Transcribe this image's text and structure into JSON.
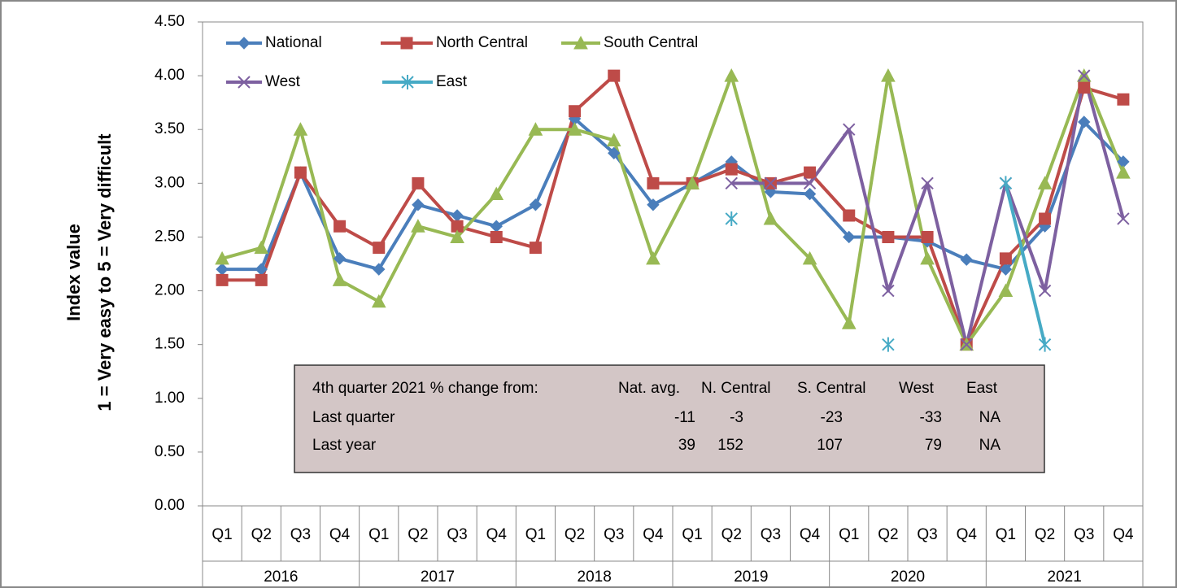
{
  "chart_data": {
    "type": "line",
    "ylabel": [
      "Index value",
      "1 = Very easy to 5 = Very difficult"
    ],
    "categories": [
      "Q1",
      "Q2",
      "Q3",
      "Q4",
      "Q1",
      "Q2",
      "Q3",
      "Q4",
      "Q1",
      "Q2",
      "Q3",
      "Q4",
      "Q1",
      "Q2",
      "Q3",
      "Q4",
      "Q1",
      "Q2",
      "Q3",
      "Q4",
      "Q1",
      "Q2",
      "Q3",
      "Q4"
    ],
    "groups": [
      "2016",
      "2017",
      "2018",
      "2019",
      "2020",
      "2021"
    ],
    "ylim": [
      0,
      4.5
    ],
    "yticks": [
      {
        "value": 0,
        "label": "0.00"
      },
      {
        "value": 0.5,
        "label": "0.50"
      },
      {
        "value": 1,
        "label": "1.00"
      },
      {
        "value": 1.5,
        "label": "1.50"
      },
      {
        "value": 2,
        "label": "2.00"
      },
      {
        "value": 2.5,
        "label": "2.50"
      },
      {
        "value": 3,
        "label": "3.00"
      },
      {
        "value": 3.5,
        "label": "3.50"
      },
      {
        "value": 4,
        "label": "4.00"
      },
      {
        "value": 4.5,
        "label": "4.50"
      }
    ],
    "series": [
      {
        "name": "National",
        "color": "#4a7ebb",
        "marker": "diamond",
        "values": [
          2.2,
          2.2,
          3.1,
          2.3,
          2.2,
          2.8,
          2.7,
          2.6,
          2.8,
          3.6,
          3.28,
          2.8,
          3.0,
          3.2,
          2.92,
          2.9,
          2.5,
          2.5,
          2.46,
          2.29,
          2.2,
          2.6,
          3.57,
          3.2
        ]
      },
      {
        "name": "North Central",
        "color": "#be4b48",
        "marker": "square",
        "values": [
          2.1,
          2.1,
          3.1,
          2.6,
          2.4,
          3.0,
          2.6,
          2.5,
          2.4,
          3.67,
          4.0,
          3.0,
          3.0,
          3.13,
          3.0,
          3.1,
          2.7,
          2.5,
          2.5,
          1.5,
          2.3,
          2.67,
          3.89,
          3.78
        ]
      },
      {
        "name": "South Central",
        "color": "#98b954",
        "marker": "triangle",
        "values": [
          2.3,
          2.4,
          3.5,
          2.1,
          1.9,
          2.6,
          2.5,
          2.9,
          3.5,
          3.5,
          3.4,
          2.3,
          3.0,
          4.0,
          2.67,
          2.3,
          1.7,
          4.0,
          2.3,
          1.5,
          2.0,
          3.0,
          4.0,
          3.1
        ]
      },
      {
        "name": "West",
        "color": "#7d60a0",
        "marker": "x",
        "values": [
          null,
          null,
          null,
          null,
          null,
          null,
          null,
          null,
          null,
          null,
          null,
          null,
          null,
          3.0,
          3.0,
          3.0,
          3.5,
          2.0,
          3.0,
          1.5,
          3.0,
          2.0,
          4.0,
          2.67
        ]
      },
      {
        "name": "East",
        "color": "#46aac5",
        "marker": "asterisk",
        "values": [
          null,
          null,
          null,
          null,
          null,
          null,
          null,
          null,
          null,
          null,
          null,
          null,
          null,
          2.67,
          null,
          null,
          null,
          1.5,
          null,
          null,
          3.0,
          1.5,
          null,
          null
        ]
      }
    ],
    "table": {
      "columns": [
        "4th quarter 2021 % change from:",
        "Nat. avg.",
        "N. Central",
        "S. Central",
        "West",
        "East"
      ],
      "rows": [
        [
          "Last quarter",
          -11,
          -3,
          -23,
          -33,
          "NA"
        ],
        [
          "Last year",
          39,
          152,
          107,
          79,
          "NA"
        ]
      ]
    }
  }
}
